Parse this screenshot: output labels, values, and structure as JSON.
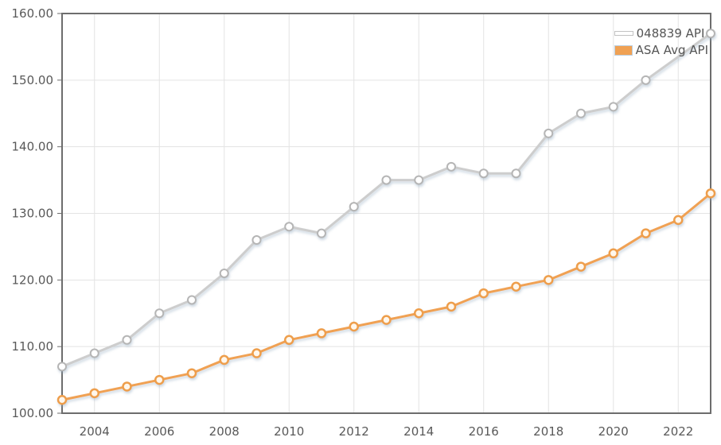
{
  "colors": {
    "background": "#ffffff",
    "plot_border": "#6d6d6d",
    "grid": "#e3e3e3",
    "axis_text": "#595959",
    "legend_text": "#555555",
    "line_shadow": "#8fa8bd"
  },
  "chart_data": {
    "type": "line",
    "title": "",
    "xlabel": "",
    "ylabel": "",
    "x": [
      2003,
      2004,
      2005,
      2006,
      2007,
      2008,
      2009,
      2010,
      2011,
      2012,
      2013,
      2014,
      2015,
      2016,
      2017,
      2018,
      2019,
      2020,
      2021,
      2022,
      2023
    ],
    "x_tick_labels": [
      "2004",
      "2006",
      "2008",
      "2010",
      "2012",
      "2014",
      "2016",
      "2018",
      "2020",
      "2022"
    ],
    "xlim": [
      2003,
      2023
    ],
    "y_ticks": [
      100,
      110,
      120,
      130,
      140,
      150,
      160
    ],
    "y_tick_labels": [
      "100.00",
      "110.00",
      "120.00",
      "130.00",
      "140.00",
      "150.00",
      "160.00"
    ],
    "ylim": [
      100,
      160
    ],
    "grid": true,
    "legend_position": "top-right",
    "series": [
      {
        "name": "048839 API",
        "color": "#cdcdcd",
        "marker_fill": "#ffffff",
        "marker_stroke": "#b5b5b5",
        "swatch": "line-outline",
        "values": [
          107,
          109,
          111,
          115,
          117,
          121,
          126,
          128,
          127,
          131,
          135,
          135,
          137,
          136,
          136,
          142,
          145,
          146,
          150,
          null,
          157
        ]
      },
      {
        "name": "ASA Avg API",
        "color": "#f0a153",
        "marker_fill": "#fff7ec",
        "marker_stroke": "#ee9e4b",
        "swatch": "filled-box",
        "values": [
          102,
          103,
          104,
          105,
          106,
          108,
          109,
          111,
          112,
          113,
          114,
          115,
          116,
          118,
          119,
          120,
          122,
          124,
          127,
          129,
          133
        ]
      }
    ]
  }
}
